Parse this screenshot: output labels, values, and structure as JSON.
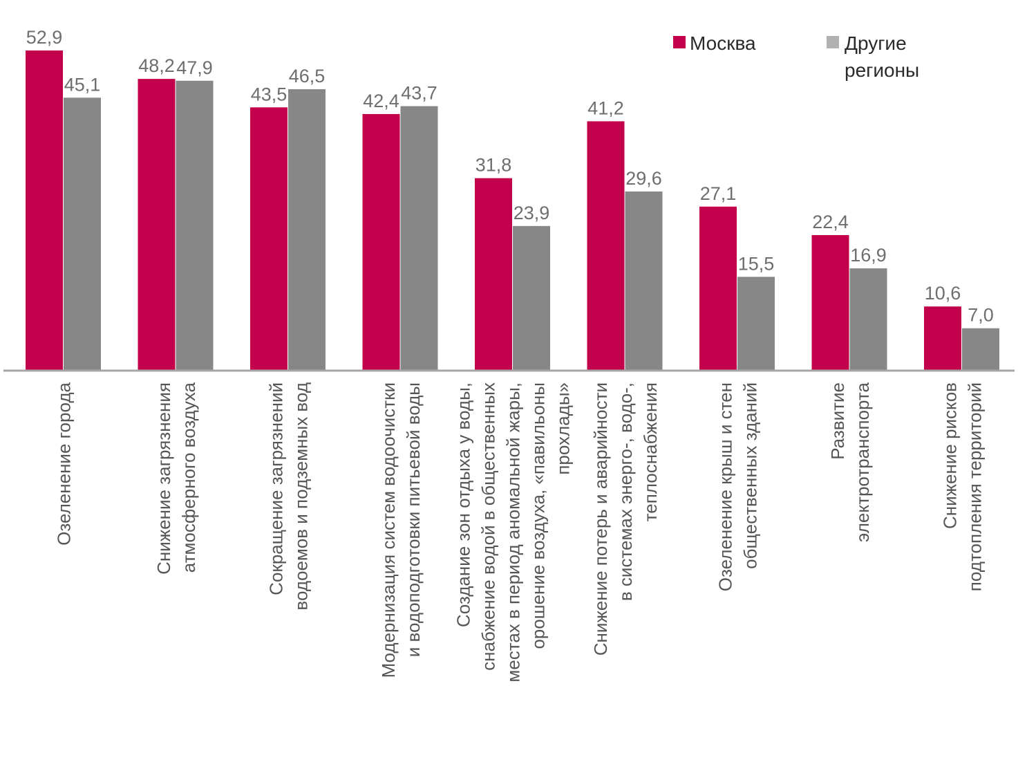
{
  "chart_data": {
    "type": "bar",
    "title": "",
    "xlabel": "",
    "ylabel": "",
    "ylim": [
      0,
      52.9
    ],
    "grid": false,
    "legend_position": "top-right",
    "categories": [
      [
        "Озеленение города"
      ],
      [
        "Снижение загрязнения",
        "атмосферного воздуха"
      ],
      [
        "Сокращение загрязнений",
        "водоемов и подземных вод"
      ],
      [
        "Модернизация систем водоочистки",
        "и водоподготовки питьевой воды"
      ],
      [
        "Создание зон отдыха у воды,",
        "снабжение водой в общественных",
        "местах в период аномальной жары,",
        "орошение воздуха, «павильоны",
        "прохлады»"
      ],
      [
        "Снижение потерь и аварийности",
        "в системах энерго-, водо-,",
        "теплоснабжения"
      ],
      [
        "Озеленение крыш и стен",
        "общественных зданий"
      ],
      [
        "Развитие",
        "электротранспорта"
      ],
      [
        "Снижение рисков",
        "подтопления территорий"
      ]
    ],
    "series": [
      {
        "name": "Москва",
        "color": "#c2004b",
        "values": [
          52.9,
          48.2,
          43.5,
          42.4,
          31.8,
          41.2,
          27.1,
          22.4,
          10.6
        ],
        "labels": [
          "52,9",
          "48,2",
          "43,5",
          "42,4",
          "31,8",
          "41,2",
          "27,1",
          "22,4",
          "10,6"
        ]
      },
      {
        "name": "Другие регионы",
        "name_lines": [
          "Другие",
          "регионы"
        ],
        "color": "#878787",
        "values": [
          45.1,
          47.9,
          46.5,
          43.7,
          23.9,
          29.6,
          15.5,
          16.9,
          7.0
        ],
        "labels": [
          "45,1",
          "47,9",
          "46,5",
          "43,7",
          "23,9",
          "29,6",
          "15,5",
          "16,9",
          "7,0"
        ]
      }
    ]
  }
}
